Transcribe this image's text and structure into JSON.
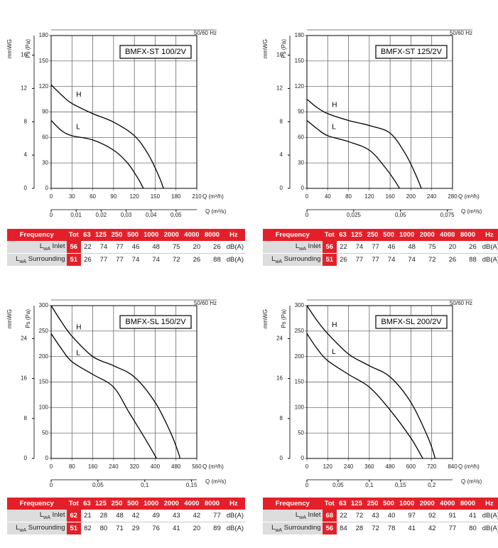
{
  "chart_data": [
    {
      "type": "line",
      "title": "BMFX-ST 100/2V",
      "note": "50/60 Hz",
      "xlabel": "Q (m³/h)",
      "ylabel": "Ps (Pa)",
      "y2label": "mmWG",
      "x2label": "Q (m³/s)",
      "xlim": [
        0,
        210
      ],
      "xticks": [
        0,
        30,
        60,
        90,
        120,
        150,
        180,
        210
      ],
      "ylim": [
        0,
        180
      ],
      "yticks": [
        0,
        30,
        60,
        90,
        120,
        150,
        180
      ],
      "y2lim": [
        0,
        18.35
      ],
      "y2ticks": [
        0,
        4,
        8,
        12,
        16
      ],
      "x2lim": [
        0,
        0.0583
      ],
      "x2ticks": [
        0,
        {
          "value": 0.01,
          "label": "0,01"
        },
        {
          "value": 0.02,
          "label": "0,02"
        },
        {
          "value": 0.03,
          "label": "0,03"
        },
        {
          "value": 0.04,
          "label": "0,04"
        },
        {
          "value": 0.05,
          "label": "0,05"
        }
      ],
      "series": [
        {
          "name": "H",
          "color": "#000",
          "x": [
            0,
            15,
            30,
            60,
            90,
            120,
            140,
            155,
            162
          ],
          "values": [
            122,
            110,
            100,
            88,
            78,
            62,
            40,
            15,
            0
          ]
        },
        {
          "name": "L",
          "color": "#000",
          "x": [
            0,
            15,
            30,
            60,
            90,
            110,
            125,
            133
          ],
          "values": [
            80,
            68,
            62,
            57,
            45,
            30,
            12,
            0
          ]
        }
      ]
    },
    {
      "type": "line",
      "title": "BMFX-ST 125/2V",
      "note": "50/60 Hz",
      "xlabel": "Q (m³/h)",
      "ylabel": "Ps (Pa)",
      "y2label": "mmWG",
      "x2label": "Q (m³/s)",
      "xlim": [
        0,
        280
      ],
      "xticks": [
        0,
        40,
        80,
        120,
        160,
        200,
        240,
        280
      ],
      "ylim": [
        0,
        180
      ],
      "yticks": [
        0,
        30,
        60,
        90,
        120,
        150,
        180
      ],
      "y2lim": [
        0,
        18.35
      ],
      "y2ticks": [
        0,
        4,
        8,
        12,
        16
      ],
      "x2lim": [
        0,
        0.0778
      ],
      "x2ticks": [
        0,
        {
          "value": 0.025,
          "label": "0,025"
        },
        {
          "value": 0.05,
          "label": "0,05"
        },
        {
          "value": 0.075,
          "label": "0,075"
        }
      ],
      "series": [
        {
          "name": "H",
          "color": "#000",
          "x": [
            0,
            20,
            40,
            80,
            120,
            160,
            190,
            210,
            220
          ],
          "values": [
            105,
            95,
            88,
            80,
            74,
            65,
            40,
            15,
            0
          ]
        },
        {
          "name": "L",
          "color": "#000",
          "x": [
            0,
            20,
            40,
            80,
            120,
            150,
            170,
            178
          ],
          "values": [
            80,
            70,
            62,
            55,
            45,
            25,
            8,
            0
          ]
        }
      ]
    },
    {
      "type": "line",
      "title": "BMFX-SL 150/2V",
      "note": "50/60 Hz",
      "xlabel": "Q (m³/h)",
      "ylabel": "Ps (Pa)",
      "y2label": "mmWG",
      "x2label": "Q (m³/s)",
      "xlim": [
        0,
        560
      ],
      "xticks": [
        0,
        80,
        160,
        240,
        320,
        400,
        480,
        560
      ],
      "ylim": [
        0,
        300
      ],
      "yticks": [
        0,
        50,
        100,
        150,
        200,
        250,
        300
      ],
      "y2lim": [
        0,
        30.6
      ],
      "y2ticks": [
        0,
        8,
        16,
        24
      ],
      "x2lim": [
        0,
        0.1556
      ],
      "x2ticks": [
        0,
        {
          "value": 0.05,
          "label": "0,05"
        },
        {
          "value": 0.1,
          "label": "0,1"
        },
        {
          "value": 0.15,
          "label": "0,15"
        }
      ],
      "series": [
        {
          "name": "H",
          "color": "#000",
          "x": [
            0,
            40,
            80,
            160,
            240,
            320,
            400,
            460,
            490,
            495
          ],
          "values": [
            300,
            268,
            240,
            200,
            182,
            160,
            110,
            50,
            10,
            0
          ]
        },
        {
          "name": "L",
          "color": "#000",
          "x": [
            0,
            40,
            80,
            160,
            240,
            300,
            360,
            400,
            405
          ],
          "values": [
            245,
            215,
            190,
            165,
            140,
            90,
            40,
            5,
            0
          ]
        }
      ]
    },
    {
      "type": "line",
      "title": "BMFX-SL 200/2V",
      "note": "50/60 Hz",
      "xlabel": "Q (m³/h)",
      "ylabel": "Ps (Pa)",
      "y2label": "mmWG",
      "x2label": "Q (m³/s)",
      "xlim": [
        0,
        840
      ],
      "xticks": [
        0,
        120,
        240,
        360,
        480,
        600,
        720,
        840
      ],
      "ylim": [
        0,
        300
      ],
      "yticks": [
        0,
        50,
        100,
        150,
        200,
        250,
        300
      ],
      "y2lim": [
        0,
        30.6
      ],
      "y2ticks": [
        0,
        8,
        16,
        24
      ],
      "x2lim": [
        0,
        0.2333
      ],
      "x2ticks": [
        0,
        {
          "value": 0.05,
          "label": "0,05"
        },
        {
          "value": 0.1,
          "label": "0,1"
        },
        {
          "value": 0.15,
          "label": "0,15"
        },
        {
          "value": 0.2,
          "label": "0,2"
        }
      ],
      "series": [
        {
          "name": "H",
          "color": "#000",
          "x": [
            0,
            60,
            120,
            240,
            360,
            480,
            600,
            700,
            740
          ],
          "values": [
            300,
            270,
            245,
            205,
            182,
            160,
            110,
            40,
            0
          ]
        },
        {
          "name": "L",
          "color": "#000",
          "x": [
            0,
            60,
            120,
            240,
            360,
            480,
            600,
            660,
            670
          ],
          "values": [
            245,
            215,
            192,
            165,
            140,
            95,
            40,
            5,
            0
          ]
        }
      ]
    }
  ],
  "tables": [
    {
      "header": [
        "Frequency",
        "Tot",
        "63",
        "125",
        "250",
        "500",
        "1000",
        "2000",
        "4000",
        "8000",
        "Hz"
      ],
      "rows": [
        {
          "symbol": "L",
          "sub": "wA",
          "name": "Inlet",
          "tot": 56,
          "values": [
            22,
            74,
            77,
            46,
            48,
            75,
            20,
            26
          ],
          "unit": "dB(A)"
        },
        {
          "symbol": "L",
          "sub": "wA",
          "name": "Surrounding",
          "tot": 51,
          "values": [
            26,
            77,
            77,
            74,
            74,
            72,
            26,
            88
          ],
          "unit": "dB(A)"
        }
      ]
    },
    {
      "header": [
        "Frequency",
        "Tot",
        "63",
        "125",
        "250",
        "500",
        "1000",
        "2000",
        "4000",
        "8000",
        "Hz"
      ],
      "rows": [
        {
          "symbol": "L",
          "sub": "wA",
          "name": "Inlet",
          "tot": 56,
          "values": [
            22,
            74,
            77,
            46,
            48,
            75,
            20,
            26
          ],
          "unit": "dB(A)"
        },
        {
          "symbol": "L",
          "sub": "wA",
          "name": "Surrounding",
          "tot": 51,
          "values": [
            26,
            77,
            77,
            74,
            74,
            72,
            26,
            88
          ],
          "unit": "dB(A)"
        }
      ]
    },
    {
      "header": [
        "Frequency",
        "Tot",
        "63",
        "125",
        "250",
        "500",
        "1000",
        "2000",
        "4000",
        "8000",
        "Hz"
      ],
      "rows": [
        {
          "symbol": "L",
          "sub": "wA",
          "name": "Inlet",
          "tot": 62,
          "values": [
            21,
            28,
            48,
            42,
            49,
            43,
            42,
            77
          ],
          "unit": "dB(A)"
        },
        {
          "symbol": "L",
          "sub": "wA",
          "name": "Surrounding",
          "tot": 51,
          "values": [
            82,
            80,
            71,
            29,
            76,
            41,
            20,
            89
          ],
          "unit": "dB(A)"
        }
      ]
    },
    {
      "header": [
        "Frequency",
        "Tot",
        "63",
        "125",
        "250",
        "500",
        "1000",
        "2000",
        "4000",
        "8000",
        "Hz"
      ],
      "rows": [
        {
          "symbol": "L",
          "sub": "wA",
          "name": "Inlet",
          "tot": 68,
          "values": [
            22,
            72,
            43,
            40,
            97,
            92,
            91,
            41
          ],
          "unit": "dB(A)"
        },
        {
          "symbol": "L",
          "sub": "wA",
          "name": "Surrounding",
          "tot": 56,
          "values": [
            84,
            28,
            72,
            78,
            41,
            42,
            77,
            80
          ],
          "unit": "dB(A)"
        }
      ]
    }
  ]
}
